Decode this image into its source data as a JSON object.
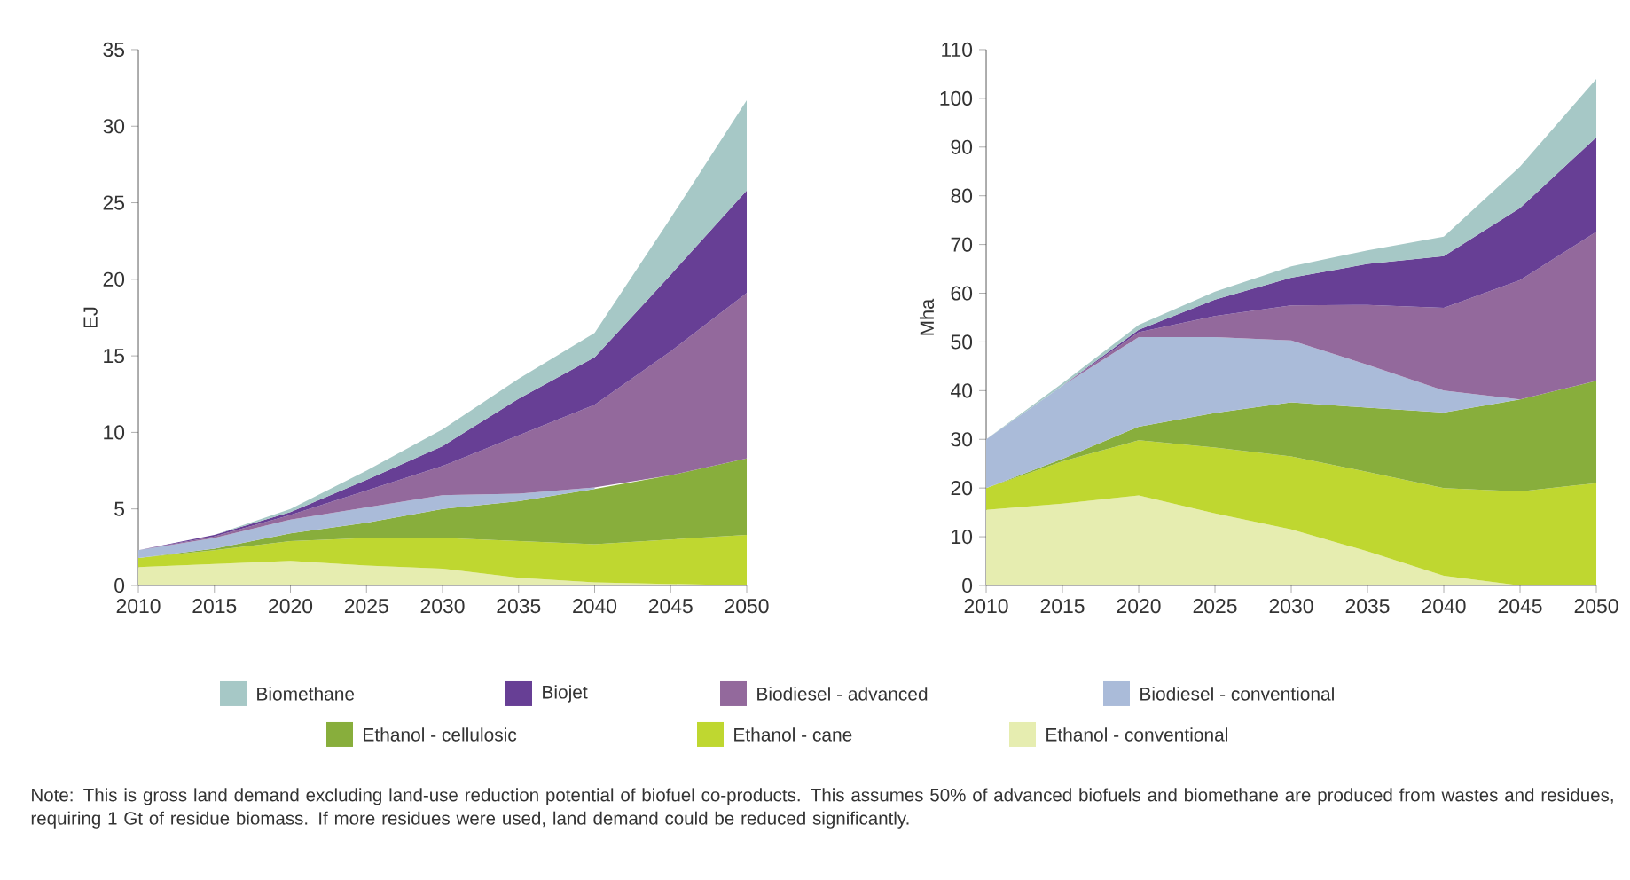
{
  "chart_data": [
    {
      "type": "area",
      "stacked": true,
      "ylabel": "EJ",
      "x": [
        2010,
        2015,
        2020,
        2025,
        2030,
        2035,
        2040,
        2045,
        2050
      ],
      "xlim": [
        2010,
        2050
      ],
      "xticks": [
        2010,
        2015,
        2020,
        2025,
        2030,
        2035,
        2040,
        2045,
        2050
      ],
      "ylim": [
        0,
        35
      ],
      "yticks": [
        0,
        5,
        10,
        15,
        20,
        25,
        30,
        35
      ],
      "legend": "bottom",
      "series": [
        {
          "name": "Ethanol - conventional",
          "color": "#e6edb0",
          "values": [
            1.2,
            1.4,
            1.6,
            1.3,
            1.1,
            0.5,
            0.2,
            0.1,
            0
          ]
        },
        {
          "name": "Ethanol - cane",
          "color": "#bfd730",
          "values": [
            0.6,
            0.9,
            1.3,
            1.8,
            2.0,
            2.4,
            2.5,
            2.9,
            3.3
          ]
        },
        {
          "name": "Ethanol - cellulosic",
          "color": "#88ae3c",
          "values": [
            0,
            0.1,
            0.5,
            1.0,
            1.9,
            2.6,
            3.6,
            4.2,
            5.0
          ]
        },
        {
          "name": "Biodiesel - conventional",
          "color": "#aabbd9",
          "values": [
            0.5,
            0.7,
            0.9,
            1.0,
            0.9,
            0.5,
            0.1,
            null,
            null
          ]
        },
        {
          "name": "Biodiesel - advanced",
          "color": "#93699c",
          "values": [
            0,
            0.1,
            0.3,
            1.1,
            1.9,
            3.8,
            5.4,
            8.1,
            10.8
          ]
        },
        {
          "name": "Biojet",
          "color": "#673f95",
          "values": [
            0,
            0.1,
            0.2,
            0.7,
            1.3,
            2.4,
            3.1,
            5.0,
            6.7
          ]
        },
        {
          "name": "Biomethane",
          "color": "#a6c8c6",
          "values": [
            0,
            0,
            0.2,
            0.6,
            1.1,
            1.3,
            1.6,
            3.7,
            5.9
          ]
        }
      ],
      "annotations": [
        "Note: This is gross land demand excluding land-use reduction potential of biofuel co-products. This assumes 50% of advanced biofuels and biomethane are produced from wastes and residues, requiring 1 Gt of residue biomass. If more residues were used, land demand could be reduced significantly."
      ]
    },
    {
      "type": "area",
      "stacked": true,
      "ylabel": "Mha",
      "x": [
        2010,
        2015,
        2020,
        2025,
        2030,
        2035,
        2040,
        2045,
        2050
      ],
      "xlim": [
        2010,
        2050
      ],
      "xticks": [
        2010,
        2015,
        2020,
        2025,
        2030,
        2035,
        2040,
        2045,
        2050
      ],
      "ylim": [
        0,
        110
      ],
      "yticks": [
        0,
        10,
        20,
        30,
        40,
        50,
        60,
        70,
        80,
        90,
        100,
        110
      ],
      "series": [
        {
          "color": "#e6edb0",
          "values": [
            15.5,
            16.8,
            18.5,
            14.8,
            11.5,
            7,
            2,
            0,
            0
          ]
        },
        {
          "color": "#bfd730",
          "values": [
            4.5,
            8.7,
            11.3,
            13.5,
            15,
            16.3,
            18,
            19.3,
            21
          ]
        },
        {
          "color": "#88ae3c",
          "values": [
            0,
            0.5,
            2.8,
            7.1,
            11.1,
            13.2,
            15.5,
            18.9,
            21
          ]
        },
        {
          "color": "#aabbd9",
          "values": [
            10,
            15,
            18.4,
            15.6,
            12.7,
            8.8,
            4.5,
            0,
            0
          ]
        },
        {
          "color": "#93699c",
          "values": [
            0,
            0,
            1,
            4.3,
            7.2,
            12.3,
            17,
            24.5,
            30.6
          ]
        },
        {
          "color": "#673f95",
          "values": [
            0,
            0,
            0.5,
            3.4,
            5.7,
            8.4,
            10.6,
            14.8,
            19.4
          ]
        },
        {
          "color": "#a6c8c6",
          "values": [
            0,
            0.5,
            1,
            1.6,
            2.3,
            2.8,
            4,
            8.5,
            12
          ]
        }
      ]
    }
  ]
}
